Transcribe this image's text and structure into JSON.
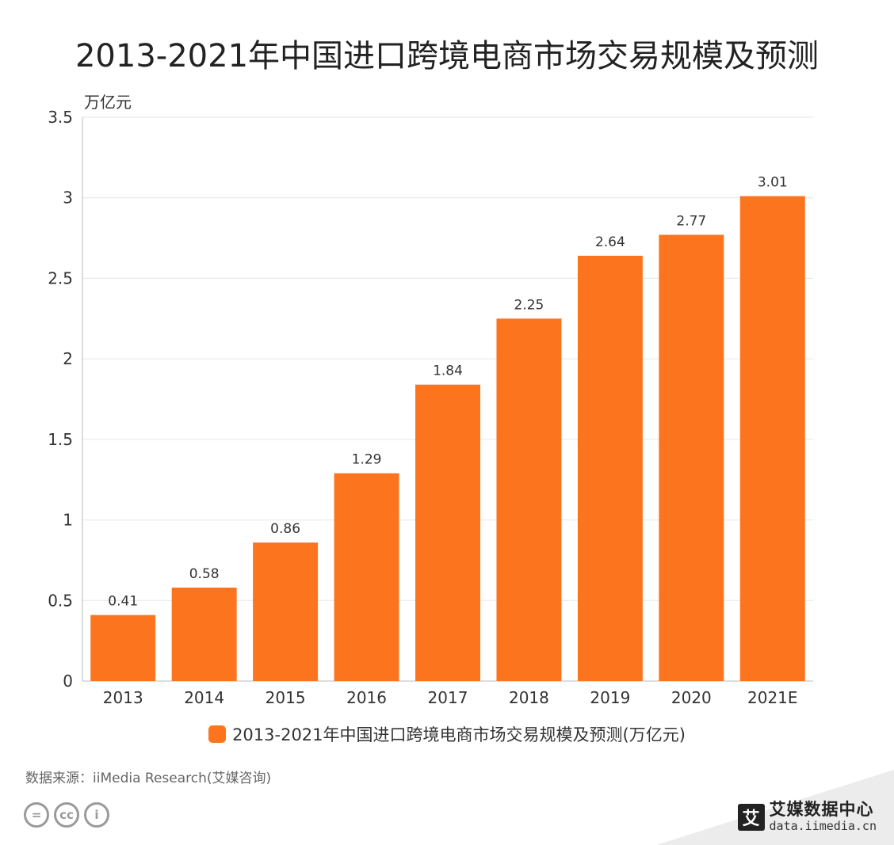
{
  "page": {
    "title": "2013-2021年中国进口跨境电商市场交易规模及预测",
    "source": "数据来源：iiMedia Research(艾媒咨询)"
  },
  "brand": {
    "logo_glyph": "艾",
    "name": "艾媒数据中心",
    "url": "data.iimedia.cn"
  },
  "license_icons": [
    "=",
    "cc",
    "i"
  ],
  "colors": {
    "bar": "#fd741e",
    "grid": "#e6e6e6",
    "axis": "#bbbbbb",
    "band": "#ececec"
  },
  "chart_data": {
    "type": "bar",
    "title": "2013-2021年中国进口跨境电商市场交易规模及预测",
    "ylabel": "万亿元",
    "categories": [
      "2013",
      "2014",
      "2015",
      "2016",
      "2017",
      "2018",
      "2019",
      "2020",
      "2021E"
    ],
    "series": [
      {
        "name": "2013-2021年中国进口跨境电商市场交易规模及预测(万亿元)",
        "values": [
          0.41,
          0.58,
          0.86,
          1.29,
          1.84,
          2.25,
          2.64,
          2.77,
          3.01
        ]
      }
    ],
    "ylim": [
      0,
      3.5
    ],
    "yticks": [
      0,
      0.5,
      1,
      1.5,
      2,
      2.5,
      3,
      3.5
    ],
    "ytick_labels": [
      "0",
      "0.5",
      "1",
      "1.5",
      "2",
      "2.5",
      "3",
      "3.5"
    ],
    "grid": true,
    "legend": "bottom"
  }
}
